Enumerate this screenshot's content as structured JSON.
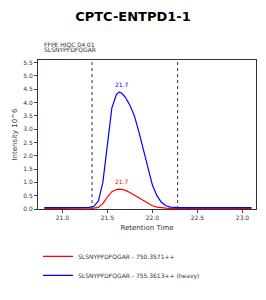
{
  "chart_data": {
    "type": "line",
    "title": "CPTC-ENTPD1-1",
    "subtitle": [
      "FFPE HIQC 04 01",
      "SLSNYPFDFQGAR"
    ],
    "x_label": "Retention Time",
    "y_label": "Intensity 10^6",
    "x": [
      20.8,
      21.0,
      21.2,
      21.3,
      21.35,
      21.4,
      21.45,
      21.5,
      21.55,
      21.6,
      21.63,
      21.66,
      21.7,
      21.75,
      21.8,
      21.85,
      21.9,
      21.95,
      22.0,
      22.05,
      22.1,
      22.15,
      22.2,
      22.3,
      22.5,
      22.8,
      23.1
    ],
    "series": [
      {
        "name": "SLSNYPFDFQGAR - 750.3571++",
        "color": "#ff0000",
        "values": [
          0.02,
          0.02,
          0.02,
          0.02,
          0.03,
          0.06,
          0.2,
          0.45,
          0.65,
          0.73,
          0.75,
          0.74,
          0.7,
          0.62,
          0.52,
          0.42,
          0.3,
          0.2,
          0.12,
          0.07,
          0.04,
          0.03,
          0.02,
          0.02,
          0.02,
          0.02,
          0.02
        ]
      },
      {
        "name": "SLSNYPFDFQGAR - 755.3613++ (heavy)",
        "color": "#0000ff",
        "values": [
          0.05,
          0.05,
          0.05,
          0.06,
          0.1,
          0.3,
          1.0,
          2.4,
          3.8,
          4.3,
          4.4,
          4.35,
          4.2,
          3.9,
          3.5,
          2.9,
          2.2,
          1.5,
          0.9,
          0.5,
          0.25,
          0.12,
          0.07,
          0.05,
          0.05,
          0.05,
          0.05
        ]
      }
    ],
    "xlim": [
      20.73,
      23.15
    ],
    "xticks": [
      {
        "value": 21,
        "label": "21.0"
      },
      21.5,
      {
        "value": 22,
        "label": "22.0"
      },
      22.5,
      {
        "value": 23,
        "label": "23.0"
      }
    ],
    "ylim": [
      0,
      5.6
    ],
    "yticks": [
      {
        "value": 0,
        "label": "0.0"
      },
      0.5,
      {
        "value": 1,
        "label": "1.0"
      },
      1.5,
      {
        "value": 2,
        "label": "2.0"
      },
      2.5,
      {
        "value": 3,
        "label": "3.0"
      },
      3.5,
      {
        "value": 4,
        "label": "4.0"
      },
      4.5,
      {
        "value": 5,
        "label": "5.0"
      },
      5.5
    ],
    "boundaries": [
      21.33,
      22.28
    ],
    "annotations": [
      {
        "text": "21.7",
        "x": 21.66,
        "y": 4.4,
        "color": "#0000ff"
      },
      {
        "text": "21.7",
        "x": 21.66,
        "y": 0.75,
        "color": "#ff0000"
      }
    ],
    "grid": false,
    "legend": "bottom"
  }
}
